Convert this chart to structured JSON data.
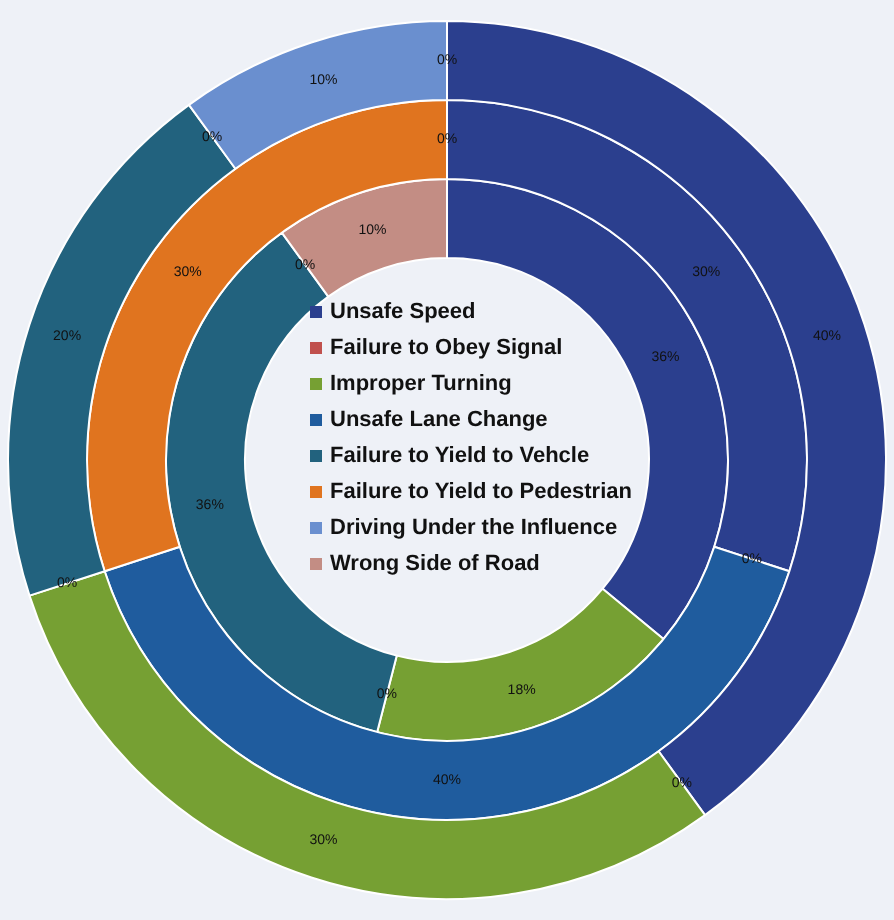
{
  "chart_data": {
    "type": "donut",
    "categories": [
      "Unsafe Speed",
      "Failure to Obey Signal",
      "Improper Turning",
      "Unsafe Lane Change",
      "Failure to Yield to Vehcle",
      "Failure to Yield to Pedestrian",
      "Driving Under the Influence",
      "Wrong Side of Road"
    ],
    "colors": [
      "#2b3f8e",
      "#c0504d",
      "#76a033",
      "#1f5c9e",
      "#22627e",
      "#e0741f",
      "#6a8fcf",
      "#c38d84"
    ],
    "series": [
      {
        "values": [
          40,
          0,
          30,
          0,
          20,
          0,
          10,
          0
        ],
        "value_labels": [
          "40%",
          "0%",
          "30%",
          "0%",
          "20%",
          "0%",
          "10%",
          "0%"
        ]
      },
      {
        "values": [
          30,
          0,
          0,
          40,
          0,
          30,
          0,
          0
        ],
        "value_labels": [
          "30%",
          "0%",
          null,
          "40%",
          null,
          "30%",
          "0%",
          null
        ]
      },
      {
        "values": [
          36,
          0,
          18,
          0,
          36,
          0,
          0,
          10
        ],
        "value_labels": [
          "36%",
          null,
          "18%",
          "0%",
          "36%",
          null,
          "0%",
          "10%"
        ]
      }
    ],
    "legend": "center"
  }
}
